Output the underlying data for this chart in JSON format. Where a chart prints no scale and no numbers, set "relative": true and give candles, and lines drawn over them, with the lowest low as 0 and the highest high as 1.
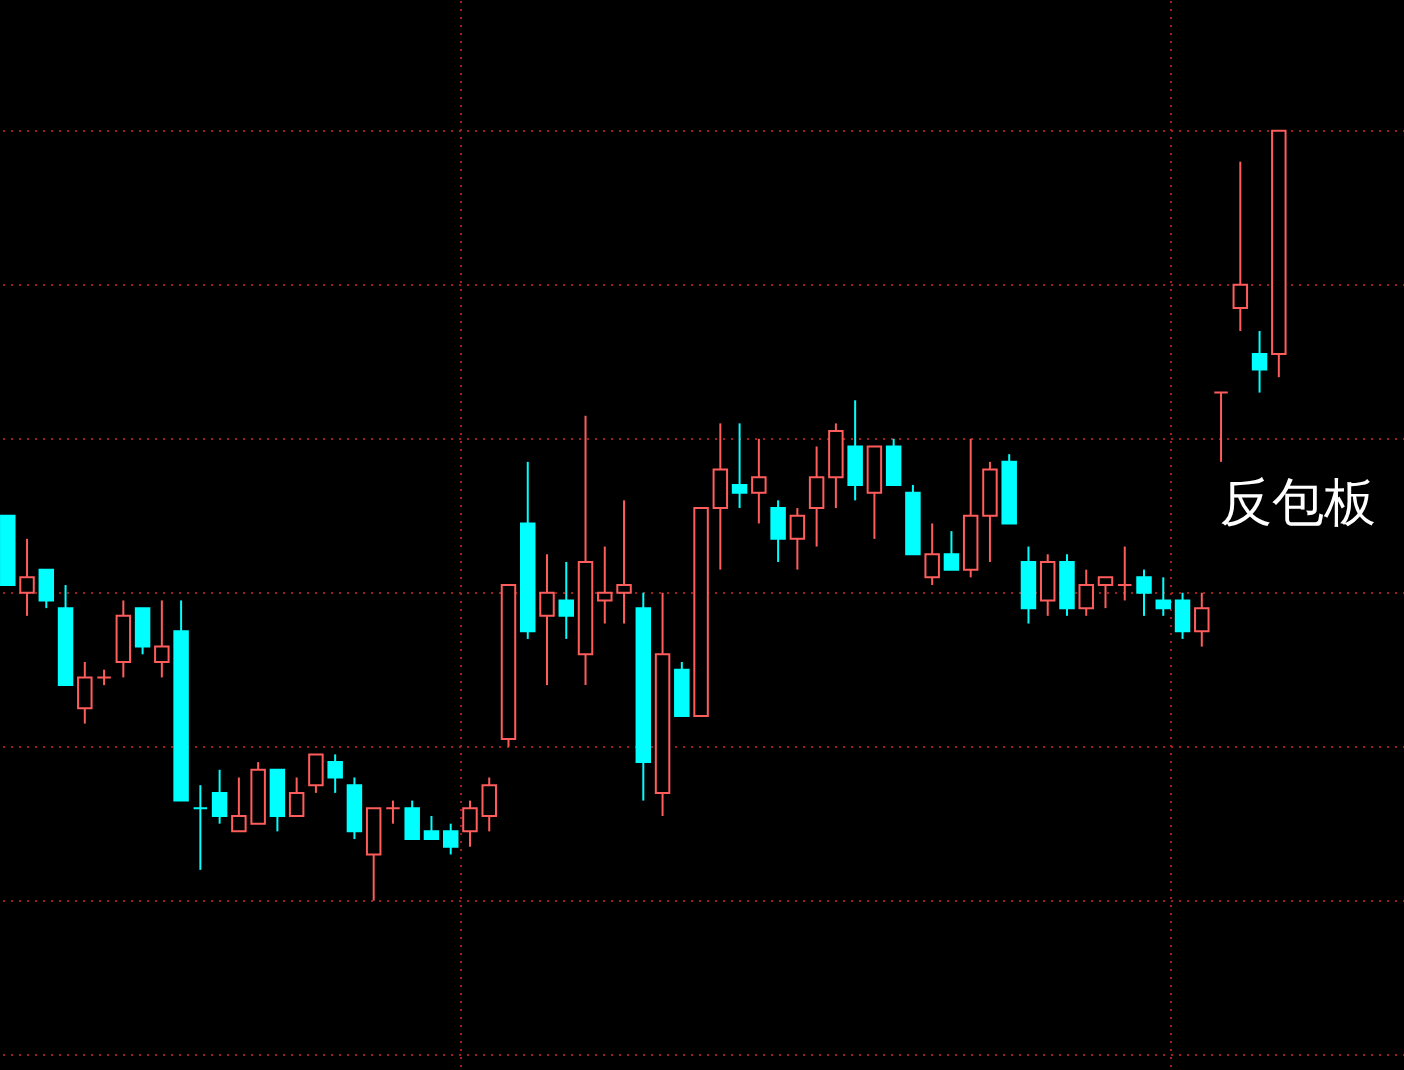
{
  "chart_data": {
    "type": "candlestick",
    "relative": true,
    "grid": true,
    "categories": [
      null,
      null,
      null,
      null,
      null,
      null,
      null,
      null,
      null,
      null,
      null,
      null,
      null,
      null,
      null,
      null,
      null,
      null,
      null,
      null,
      null,
      null,
      null,
      null,
      null,
      null,
      null,
      null,
      null,
      null,
      null,
      null,
      null,
      null,
      null,
      null,
      null,
      null,
      null,
      null,
      null,
      null,
      null,
      null,
      null,
      null,
      null,
      null,
      null,
      null,
      null,
      null,
      null,
      null,
      null,
      null,
      null,
      null,
      null,
      null,
      null,
      null,
      null,
      null,
      null,
      null,
      null
    ],
    "ohlc": [
      [
        0.5,
        0.5,
        0.41,
        0.41
      ],
      [
        0.4,
        0.47,
        0.37,
        0.42
      ],
      [
        0.43,
        0.43,
        0.38,
        0.39
      ],
      [
        0.38,
        0.41,
        0.28,
        0.28
      ],
      [
        0.25,
        0.31,
        0.23,
        0.29
      ],
      [
        0.29,
        0.3,
        0.28,
        0.29
      ],
      [
        0.31,
        0.39,
        0.29,
        0.37
      ],
      [
        0.38,
        0.38,
        0.32,
        0.33
      ],
      [
        0.31,
        0.39,
        0.29,
        0.33
      ],
      [
        0.35,
        0.39,
        0.13,
        0.13
      ],
      [
        0.12,
        0.15,
        0.04,
        0.12
      ],
      [
        0.14,
        0.17,
        0.1,
        0.11
      ],
      [
        0.09,
        0.16,
        0.09,
        0.11
      ],
      [
        0.1,
        0.18,
        0.1,
        0.17
      ],
      [
        0.17,
        0.17,
        0.09,
        0.11
      ],
      [
        0.11,
        0.16,
        0.11,
        0.14
      ],
      [
        0.15,
        0.19,
        0.14,
        0.19
      ],
      [
        0.18,
        0.19,
        0.14,
        0.16
      ],
      [
        0.15,
        0.16,
        0.08,
        0.09
      ],
      [
        0.06,
        0.12,
        0.0,
        0.12
      ],
      [
        0.12,
        0.13,
        0.1,
        0.12
      ],
      [
        0.12,
        0.13,
        0.08,
        0.08
      ],
      [
        0.09,
        0.11,
        0.08,
        0.08
      ],
      [
        0.09,
        0.1,
        0.06,
        0.07
      ],
      [
        0.09,
        0.13,
        0.07,
        0.12
      ],
      [
        0.11,
        0.16,
        0.09,
        0.15
      ],
      [
        0.21,
        0.41,
        0.2,
        0.41
      ],
      [
        0.49,
        0.57,
        0.34,
        0.35
      ],
      [
        0.37,
        0.45,
        0.28,
        0.4
      ],
      [
        0.39,
        0.44,
        0.34,
        0.37
      ],
      [
        0.32,
        0.63,
        0.28,
        0.44
      ],
      [
        0.39,
        0.46,
        0.36,
        0.4
      ],
      [
        0.4,
        0.52,
        0.36,
        0.41
      ],
      [
        0.38,
        0.4,
        0.13,
        0.18
      ],
      [
        0.14,
        0.4,
        0.11,
        0.32
      ],
      [
        0.3,
        0.31,
        0.24,
        0.24
      ],
      [
        0.24,
        0.51,
        0.24,
        0.51
      ],
      [
        0.51,
        0.62,
        0.43,
        0.56
      ],
      [
        0.54,
        0.62,
        0.51,
        0.53
      ],
      [
        0.53,
        0.6,
        0.49,
        0.55
      ],
      [
        0.51,
        0.52,
        0.44,
        0.47
      ],
      [
        0.47,
        0.51,
        0.43,
        0.5
      ],
      [
        0.51,
        0.59,
        0.46,
        0.55
      ],
      [
        0.55,
        0.62,
        0.51,
        0.61
      ],
      [
        0.59,
        0.65,
        0.52,
        0.54
      ],
      [
        0.53,
        0.59,
        0.47,
        0.59
      ],
      [
        0.59,
        0.6,
        0.54,
        0.54
      ],
      [
        0.53,
        0.54,
        0.45,
        0.45
      ],
      [
        0.42,
        0.49,
        0.41,
        0.45
      ],
      [
        0.45,
        0.48,
        0.43,
        0.43
      ],
      [
        0.43,
        0.6,
        0.42,
        0.5
      ],
      [
        0.5,
        0.57,
        0.44,
        0.56
      ],
      [
        0.57,
        0.58,
        0.49,
        0.49
      ],
      [
        0.44,
        0.46,
        0.36,
        0.38
      ],
      [
        0.39,
        0.45,
        0.37,
        0.44
      ],
      [
        0.44,
        0.45,
        0.37,
        0.38
      ],
      [
        0.38,
        0.43,
        0.37,
        0.41
      ],
      [
        0.41,
        0.42,
        0.38,
        0.42
      ],
      [
        0.41,
        0.46,
        0.39,
        0.41
      ],
      [
        0.42,
        0.43,
        0.37,
        0.4
      ],
      [
        0.39,
        0.42,
        0.37,
        0.38
      ],
      [
        0.39,
        0.4,
        0.34,
        0.35
      ],
      [
        0.35,
        0.4,
        0.33,
        0.38
      ],
      [
        0.66,
        0.66,
        0.57,
        0.66
      ],
      [
        0.77,
        0.96,
        0.74,
        0.8
      ],
      [
        0.71,
        0.74,
        0.66,
        0.69
      ],
      [
        0.71,
        1.0,
        0.68,
        1.0
      ]
    ],
    "colors": [
      "#00ffff",
      "#ff5c5c",
      "#00ffff",
      "#00ffff",
      "#ff5c5c",
      "#ff5c5c",
      "#ff5c5c",
      "#00ffff",
      "#ff5c5c",
      "#00ffff",
      "#00ffff",
      "#00ffff",
      "#ff5c5c",
      "#ff5c5c",
      "#00ffff",
      "#ff5c5c",
      "#ff5c5c",
      "#00ffff",
      "#00ffff",
      "#ff5c5c",
      "#ff5c5c",
      "#00ffff",
      "#00ffff",
      "#00ffff",
      "#ff5c5c",
      "#ff5c5c",
      "#ff5c5c",
      "#00ffff",
      "#ff5c5c",
      "#00ffff",
      "#ff5c5c",
      "#ff5c5c",
      "#ff5c5c",
      "#00ffff",
      "#ff5c5c",
      "#00ffff",
      "#ff5c5c",
      "#ff5c5c",
      "#00ffff",
      "#ff5c5c",
      "#00ffff",
      "#ff5c5c",
      "#ff5c5c",
      "#ff5c5c",
      "#00ffff",
      "#ff5c5c",
      "#00ffff",
      "#00ffff",
      "#ff5c5c",
      "#00ffff",
      "#ff5c5c",
      "#ff5c5c",
      "#00ffff",
      "#00ffff",
      "#ff5c5c",
      "#00ffff",
      "#ff5c5c",
      "#ff5c5c",
      "#ff5c5c",
      "#00ffff",
      "#00ffff",
      "#00ffff",
      "#ff5c5c",
      "#ff5c5c",
      "#ff5c5c",
      "#00ffff",
      "#ff5c5c"
    ],
    "annotations": [
      "反包板"
    ]
  }
}
